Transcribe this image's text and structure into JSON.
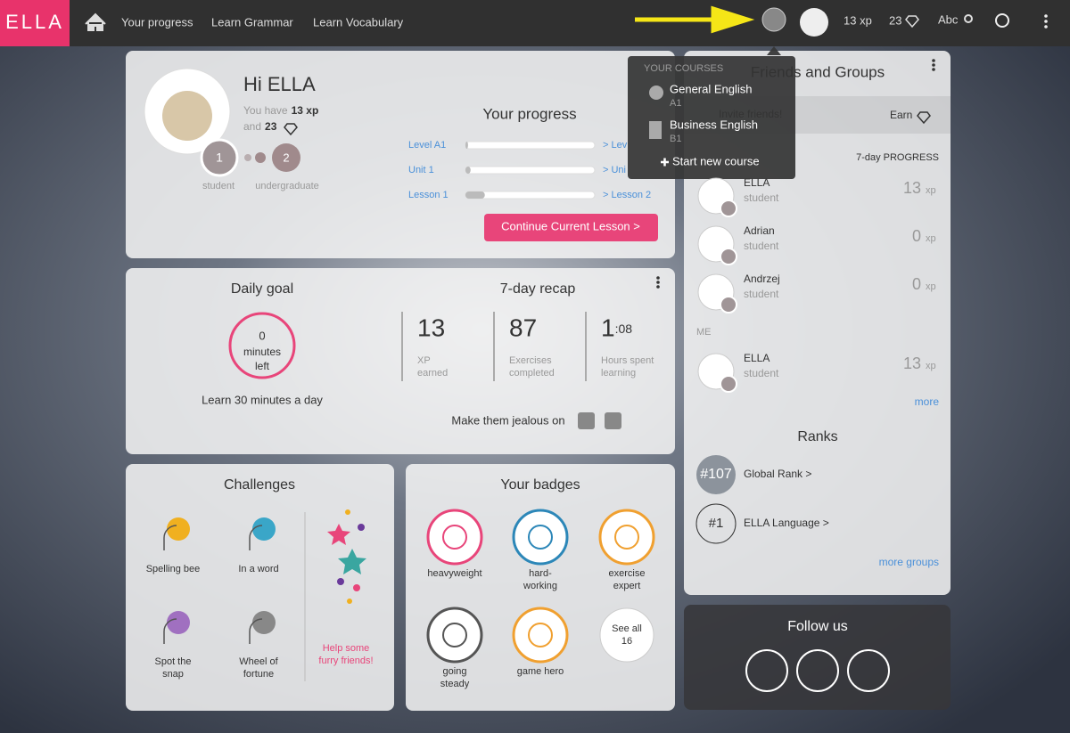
{
  "nav": {
    "logo": "ELLA",
    "links": [
      "Your progress",
      "Learn Grammar",
      "Learn Vocabulary"
    ],
    "xp": "13 xp",
    "gems": "23",
    "search": "Abc"
  },
  "dropdown": {
    "heading": "YOUR COURSES",
    "courses": [
      {
        "name": "General English",
        "level": "A1"
      },
      {
        "name": "Business English",
        "level": "B1"
      }
    ],
    "new_course": "Start new course"
  },
  "profile": {
    "greeting": "Hi ELLA",
    "have": "You have",
    "xp": "13 xp",
    "and": "and",
    "gems": "23",
    "ranks": [
      {
        "number": "1",
        "label": "student"
      },
      {
        "number": "2",
        "label": "undergraduate"
      }
    ]
  },
  "progress": {
    "title": "Your progress",
    "rows": [
      {
        "label": "Level A1",
        "fill": 2,
        "link": "> Lev"
      },
      {
        "label": "Unit 1",
        "fill": 4,
        "link": "> Uni"
      },
      {
        "label": "Lesson 1",
        "fill": 15,
        "link": "> Lesson 2"
      }
    ],
    "button": "Continue Current Lesson >"
  },
  "daily_goal": {
    "title": "Daily goal",
    "value": "0",
    "unit": "minutes",
    "suffix": "left",
    "note": "Learn 30 minutes a day"
  },
  "recap": {
    "title": "7-day recap",
    "stats": [
      {
        "value": "13",
        "small": "",
        "label": [
          "XP",
          "earned"
        ]
      },
      {
        "value": "87",
        "small": "",
        "label": [
          "Exercises",
          "completed"
        ]
      },
      {
        "value": "1",
        "small": ":08",
        "label": [
          "Hours spent",
          "learning"
        ]
      }
    ],
    "share": "Make them jealous on"
  },
  "challenges": {
    "title": "Challenges",
    "items": [
      [
        "Spelling bee"
      ],
      [
        "In a word"
      ],
      [
        "Spot the",
        "snap"
      ],
      [
        "Wheel of",
        "fortune"
      ]
    ],
    "promo": [
      "Help some",
      "furry friends!"
    ]
  },
  "badges": {
    "title": "Your badges",
    "items": [
      [
        "heavyweight"
      ],
      [
        "hard-",
        "working"
      ],
      [
        "exercise",
        "expert"
      ],
      [
        "going",
        "steady"
      ],
      [
        "game hero"
      ]
    ],
    "see_all": [
      "See all",
      "16"
    ]
  },
  "friends": {
    "title": "Friends and Groups",
    "invite": "Invite friends!",
    "earn": "Earn",
    "progress_label": "7-day PROGRESS",
    "members": [
      {
        "name": "ELLA",
        "role": "student",
        "xp": "13",
        "unit": "xp"
      },
      {
        "name": "Adrian",
        "role": "student",
        "xp": "0",
        "unit": "xp"
      },
      {
        "name": "Andrzej",
        "role": "student",
        "xp": "0",
        "unit": "xp"
      }
    ],
    "me_label": "ME",
    "me": {
      "name": "ELLA",
      "role": "student",
      "xp": "13",
      "unit": "xp"
    },
    "more": "more",
    "ranks_title": "Ranks",
    "ranks": [
      {
        "badge": "#107",
        "label": "Global Rank >"
      },
      {
        "badge": "#1",
        "label": "ELLA Language >"
      }
    ],
    "more_groups": "more groups"
  },
  "follow": {
    "title": "Follow us"
  }
}
